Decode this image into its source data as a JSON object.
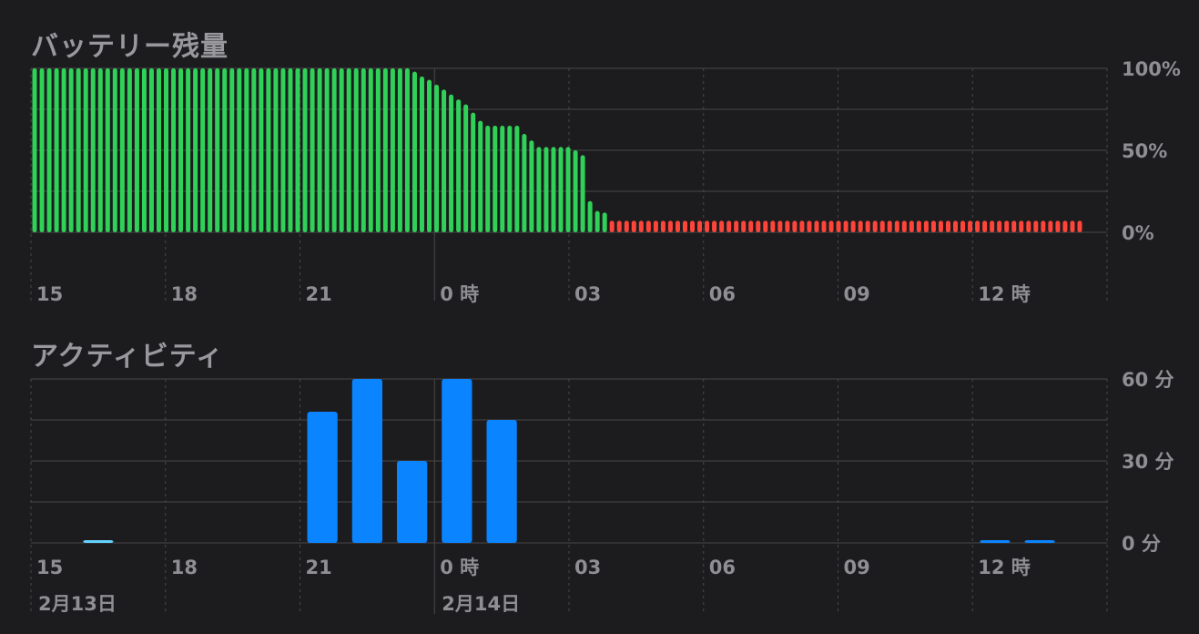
{
  "battery_title": "バッテリー残量",
  "activity_title": "アクティビティ",
  "colors": {
    "background": "#1c1c1e",
    "battery_normal": "#30d158",
    "battery_low": "#ff453a",
    "activity_bar": "#0a84ff",
    "activity_light": "#64d2ff",
    "grid": "#48484a",
    "label": "#8e8e93"
  },
  "x_ticks": [
    "15",
    "18",
    "21",
    "0 時",
    "03",
    "06",
    "09",
    "12 時"
  ],
  "date_labels": [
    {
      "label": "2月13日",
      "hour": 15
    },
    {
      "label": "2月14日",
      "hour": 24
    }
  ],
  "chart_data": [
    {
      "type": "bar",
      "title": "バッテリー残量",
      "x_unit": "hour offset from 15:00 (2月13日)",
      "ylim": [
        0,
        100
      ],
      "y_ticks": [
        "100%",
        "50%",
        "0%"
      ],
      "y_tick_values": [
        100,
        50,
        0
      ],
      "low_threshold": 10,
      "values": [
        100,
        100,
        100,
        100,
        100,
        100,
        100,
        100,
        100,
        100,
        100,
        100,
        100,
        100,
        100,
        100,
        100,
        100,
        100,
        100,
        100,
        100,
        100,
        100,
        100,
        100,
        100,
        100,
        100,
        100,
        100,
        100,
        100,
        100,
        100,
        100,
        100,
        100,
        100,
        100,
        100,
        100,
        100,
        100,
        100,
        100,
        100,
        100,
        100,
        100,
        100,
        100,
        98,
        95,
        93,
        90,
        87,
        84,
        81,
        78,
        73,
        68,
        65,
        65,
        65,
        65,
        65,
        60,
        56,
        52,
        52,
        52,
        52,
        52,
        50,
        47,
        19,
        13,
        12,
        7,
        7,
        7,
        7,
        7,
        7,
        7,
        7,
        7,
        7,
        7,
        7,
        7,
        7,
        7,
        7,
        7,
        7,
        7,
        7,
        7,
        7,
        7,
        7,
        7,
        7,
        7,
        7,
        7,
        7,
        7,
        7,
        7,
        7,
        7,
        7,
        7,
        7,
        7,
        7,
        7,
        7,
        7,
        7,
        7,
        7,
        7,
        7,
        7,
        7,
        7,
        7,
        7,
        7,
        7,
        7,
        7,
        7,
        7,
        7,
        7,
        7,
        7,
        7,
        7
      ]
    },
    {
      "type": "bar",
      "title": "アクティビティ",
      "x_unit": "hour offset from 15:00 (2月13日)",
      "ylim": [
        0,
        60
      ],
      "y_ticks": [
        "60 分",
        "30 分",
        "0 分"
      ],
      "y_tick_values": [
        60,
        30,
        0
      ],
      "bars": [
        {
          "hour": 1,
          "value": 0.5,
          "light": true
        },
        {
          "hour": 6,
          "value": 48
        },
        {
          "hour": 7,
          "value": 60
        },
        {
          "hour": 8,
          "value": 30
        },
        {
          "hour": 9,
          "value": 60
        },
        {
          "hour": 10,
          "value": 45
        },
        {
          "hour": 21,
          "value": 0.5
        },
        {
          "hour": 22,
          "value": 0.5
        }
      ]
    }
  ]
}
